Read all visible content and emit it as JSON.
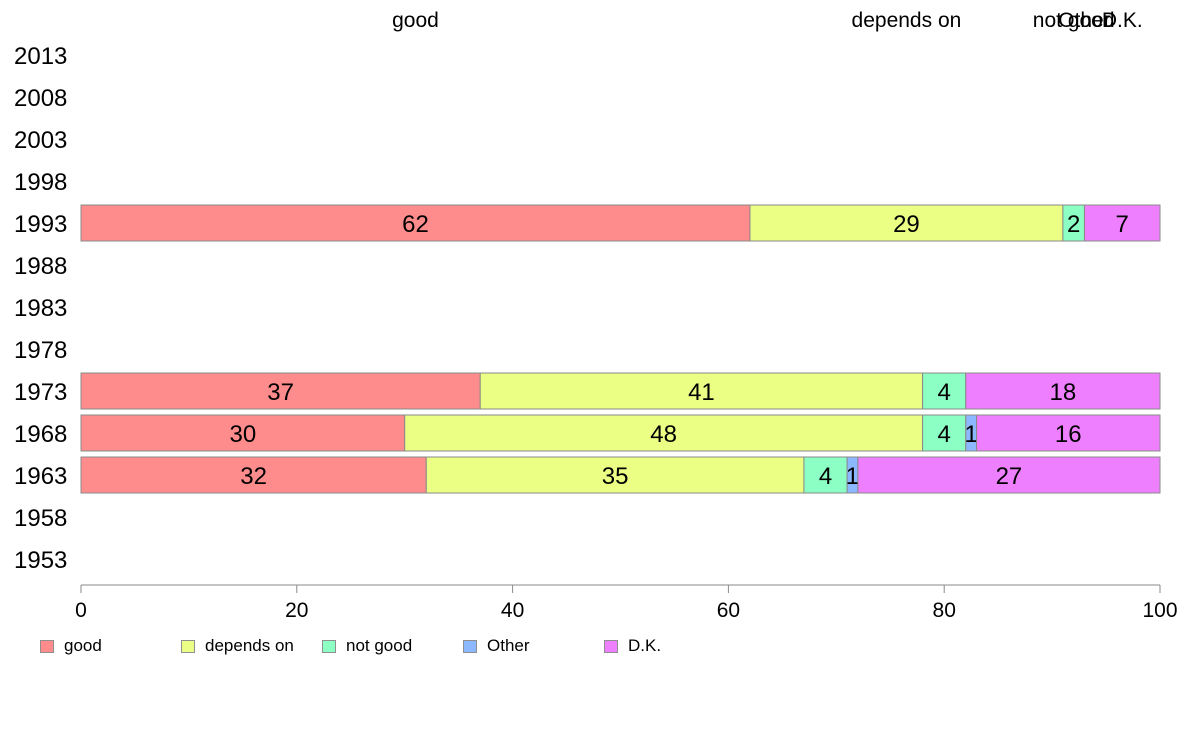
{
  "chart_data": {
    "type": "bar",
    "orientation": "horizontal",
    "stacked": true,
    "categories": [
      "2013",
      "2008",
      "2003",
      "1998",
      "1993",
      "1988",
      "1983",
      "1978",
      "1973",
      "1968",
      "1963",
      "1958",
      "1953"
    ],
    "series": [
      {
        "name": "good",
        "color": "#ff8c8c",
        "values": [
          null,
          null,
          null,
          null,
          62,
          null,
          null,
          null,
          37,
          30,
          32,
          null,
          null
        ]
      },
      {
        "name": "depends on",
        "color": "#ecff85",
        "values": [
          null,
          null,
          null,
          null,
          29,
          null,
          null,
          null,
          41,
          48,
          35,
          null,
          null
        ]
      },
      {
        "name": "not good",
        "color": "#8cffc4",
        "values": [
          null,
          null,
          null,
          null,
          2,
          null,
          null,
          null,
          4,
          4,
          4,
          null,
          null
        ]
      },
      {
        "name": "Other",
        "color": "#8cb8ff",
        "values": [
          null,
          null,
          null,
          null,
          0,
          null,
          null,
          null,
          0,
          1,
          1,
          null,
          null
        ]
      },
      {
        "name": "D.K.",
        "color": "#ee80ff",
        "values": [
          null,
          null,
          null,
          null,
          7,
          null,
          null,
          null,
          18,
          16,
          27,
          null,
          null
        ]
      }
    ],
    "segment_labels": [
      {
        "category": "1993",
        "labels": [
          "62",
          "29",
          "2",
          "",
          "7"
        ]
      },
      {
        "category": "1973",
        "labels": [
          "37",
          "41",
          "4",
          "",
          "18"
        ]
      },
      {
        "category": "1968",
        "labels": [
          "30",
          "48",
          "4",
          "1",
          "16"
        ]
      },
      {
        "category": "1963",
        "labels": [
          "32",
          "35",
          "4",
          "1",
          "27"
        ]
      }
    ],
    "top_labels": [
      "good",
      "depends on",
      "not good",
      "Other",
      "D.K."
    ],
    "top_labels_reference_category": "1993",
    "x_ticks": [
      0,
      20,
      40,
      60,
      80,
      100
    ],
    "xlim": [
      0,
      100
    ],
    "grid": false,
    "legend_position": "bottom",
    "title": "",
    "xlabel": "",
    "ylabel": ""
  }
}
